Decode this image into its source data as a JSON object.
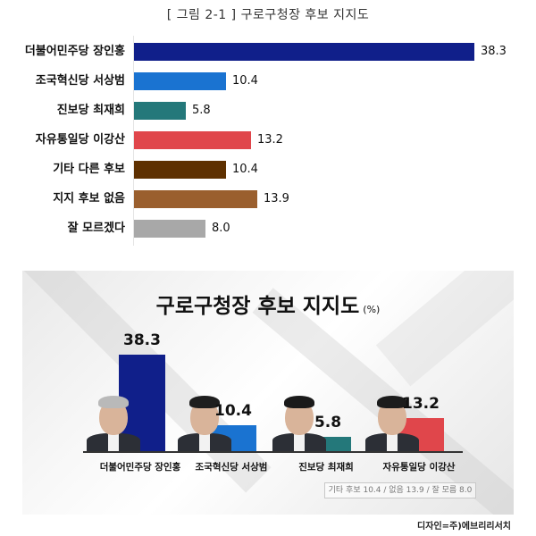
{
  "figure_caption": "[ 그림 2-1 ] 구로구청장 후보 지지도",
  "chart_data": [
    {
      "type": "bar",
      "orientation": "horizontal",
      "title": "[ 그림 2-1 ] 구로구청장 후보 지지도",
      "categories": [
        "더불어민주당 장인홍",
        "조국혁신당 서상범",
        "진보당 최재희",
        "자유통일당 이강산",
        "기타 다른 후보",
        "지지 후보 없음",
        "잘 모르겠다"
      ],
      "values": [
        38.3,
        10.4,
        5.8,
        13.2,
        10.4,
        13.9,
        8.0
      ],
      "colors": [
        "#101f8a",
        "#1a73d1",
        "#24787a",
        "#e0464b",
        "#5e3000",
        "#9a5f2e",
        "#a8a8a8"
      ],
      "xlabel": "",
      "ylabel": "",
      "grid": false
    },
    {
      "type": "bar",
      "orientation": "vertical",
      "title": "구로구청장 후보 지지도",
      "unit": "(%)",
      "categories": [
        "더불어민주당 장인홍",
        "조국혁신당 서상범",
        "진보당 최재희",
        "자유통일당 이강산"
      ],
      "values": [
        38.3,
        10.4,
        5.8,
        13.2
      ],
      "colors": [
        "#101f8a",
        "#1a73d1",
        "#24787a",
        "#e0464b"
      ],
      "annotation": "기타 후보 10.4 / 없음 13.9 / 잘 모름 8.0",
      "credit": "디자인=주)에브리리서치"
    }
  ],
  "hchart": {
    "rows": [
      {
        "label": "더불어민주당 장인홍",
        "value": "38.3",
        "num": 38.3,
        "color": "#101f8a"
      },
      {
        "label": "조국혁신당 서상범",
        "value": "10.4",
        "num": 10.4,
        "color": "#1a73d1"
      },
      {
        "label": "진보당 최재희",
        "value": "5.8",
        "num": 5.8,
        "color": "#24787a"
      },
      {
        "label": "자유통일당 이강산",
        "value": "13.2",
        "num": 13.2,
        "color": "#e0464b"
      },
      {
        "label": "기타 다른 후보",
        "value": "10.4",
        "num": 10.4,
        "color": "#5e3000"
      },
      {
        "label": "지지 후보 없음",
        "value": "13.9",
        "num": 13.9,
        "color": "#9a5f2e"
      },
      {
        "label": "잘 모르겠다",
        "value": "8.0",
        "num": 8.0,
        "color": "#a8a8a8"
      }
    ]
  },
  "panel": {
    "title": "구로구청장 후보 지지도",
    "unit": "(%)",
    "candidates": [
      {
        "name": "더불어민주당 장인홍",
        "value": "38.3",
        "num": 38.3,
        "color": "#101f8a",
        "hair": "#b9b9b9"
      },
      {
        "name": "조국혁신당 서상범",
        "value": "10.4",
        "num": 10.4,
        "color": "#1a73d1",
        "hair": "#1e1e1e"
      },
      {
        "name": "진보당 최재희",
        "value": "5.8",
        "num": 5.8,
        "color": "#24787a",
        "hair": "#1a1a1a"
      },
      {
        "name": "자유통일당 이강산",
        "value": "13.2",
        "num": 13.2,
        "color": "#e0464b",
        "hair": "#1c1c1c"
      }
    ],
    "note": "기타 후보 10.4 / 없음 13.9 / 잘 모름 8.0"
  },
  "credit": "디자인=주)에브리리서치"
}
